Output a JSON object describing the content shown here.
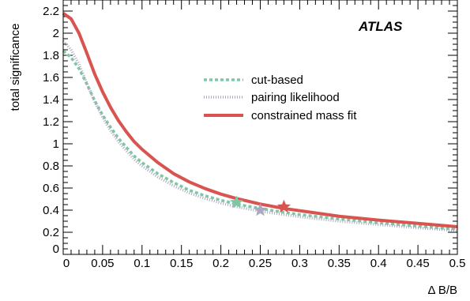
{
  "chart_data": {
    "type": "line",
    "xlabel": "Δ B/B",
    "ylabel": "total significance",
    "annotation": "ATLAS",
    "xlim": [
      0,
      0.5
    ],
    "ylim": [
      0,
      2.3
    ],
    "x_ticks": [
      "0",
      "0.05",
      "0.1",
      "0.15",
      "0.2",
      "0.25",
      "0.3",
      "0.35",
      "0.4",
      "0.45",
      "0.5"
    ],
    "y_ticks": [
      "0",
      "0.2",
      "0.4",
      "0.6",
      "0.8",
      "1",
      "1.2",
      "1.4",
      "1.6",
      "1.8",
      "2",
      "2.2"
    ],
    "grid": false,
    "legend_position": "center-right",
    "x": [
      0,
      0.01,
      0.02,
      0.03,
      0.04,
      0.05,
      0.06,
      0.07,
      0.08,
      0.09,
      0.1,
      0.12,
      0.14,
      0.16,
      0.18,
      0.2,
      0.22,
      0.25,
      0.28,
      0.3,
      0.35,
      0.4,
      0.45,
      0.5
    ],
    "series": [
      {
        "name": "cut-based",
        "style": "dashed",
        "color": "#7fc6a4",
        "values": [
          1.84,
          1.78,
          1.68,
          1.54,
          1.39,
          1.26,
          1.15,
          1.05,
          0.97,
          0.89,
          0.83,
          0.73,
          0.65,
          0.58,
          0.53,
          0.49,
          0.455,
          0.415,
          0.38,
          0.36,
          0.32,
          0.285,
          0.255,
          0.225
        ],
        "marker": {
          "x": 0.22,
          "y": 0.47,
          "symbol": "star"
        }
      },
      {
        "name": "pairing likelihood",
        "style": "dotted",
        "color": "#a9a9c0",
        "values": [
          1.93,
          1.85,
          1.72,
          1.55,
          1.38,
          1.24,
          1.12,
          1.02,
          0.94,
          0.86,
          0.8,
          0.7,
          0.62,
          0.555,
          0.505,
          0.465,
          0.43,
          0.39,
          0.36,
          0.34,
          0.3,
          0.27,
          0.24,
          0.215
        ],
        "marker": {
          "x": 0.25,
          "y": 0.4,
          "symbol": "star"
        }
      },
      {
        "name": "constrained mass fit",
        "style": "solid",
        "color": "#d9534f",
        "values": [
          2.18,
          2.13,
          2.0,
          1.82,
          1.63,
          1.47,
          1.33,
          1.21,
          1.11,
          1.02,
          0.95,
          0.83,
          0.73,
          0.655,
          0.595,
          0.545,
          0.505,
          0.455,
          0.415,
          0.395,
          0.345,
          0.31,
          0.28,
          0.25
        ],
        "marker": {
          "x": 0.28,
          "y": 0.43,
          "symbol": "star"
        }
      }
    ]
  }
}
